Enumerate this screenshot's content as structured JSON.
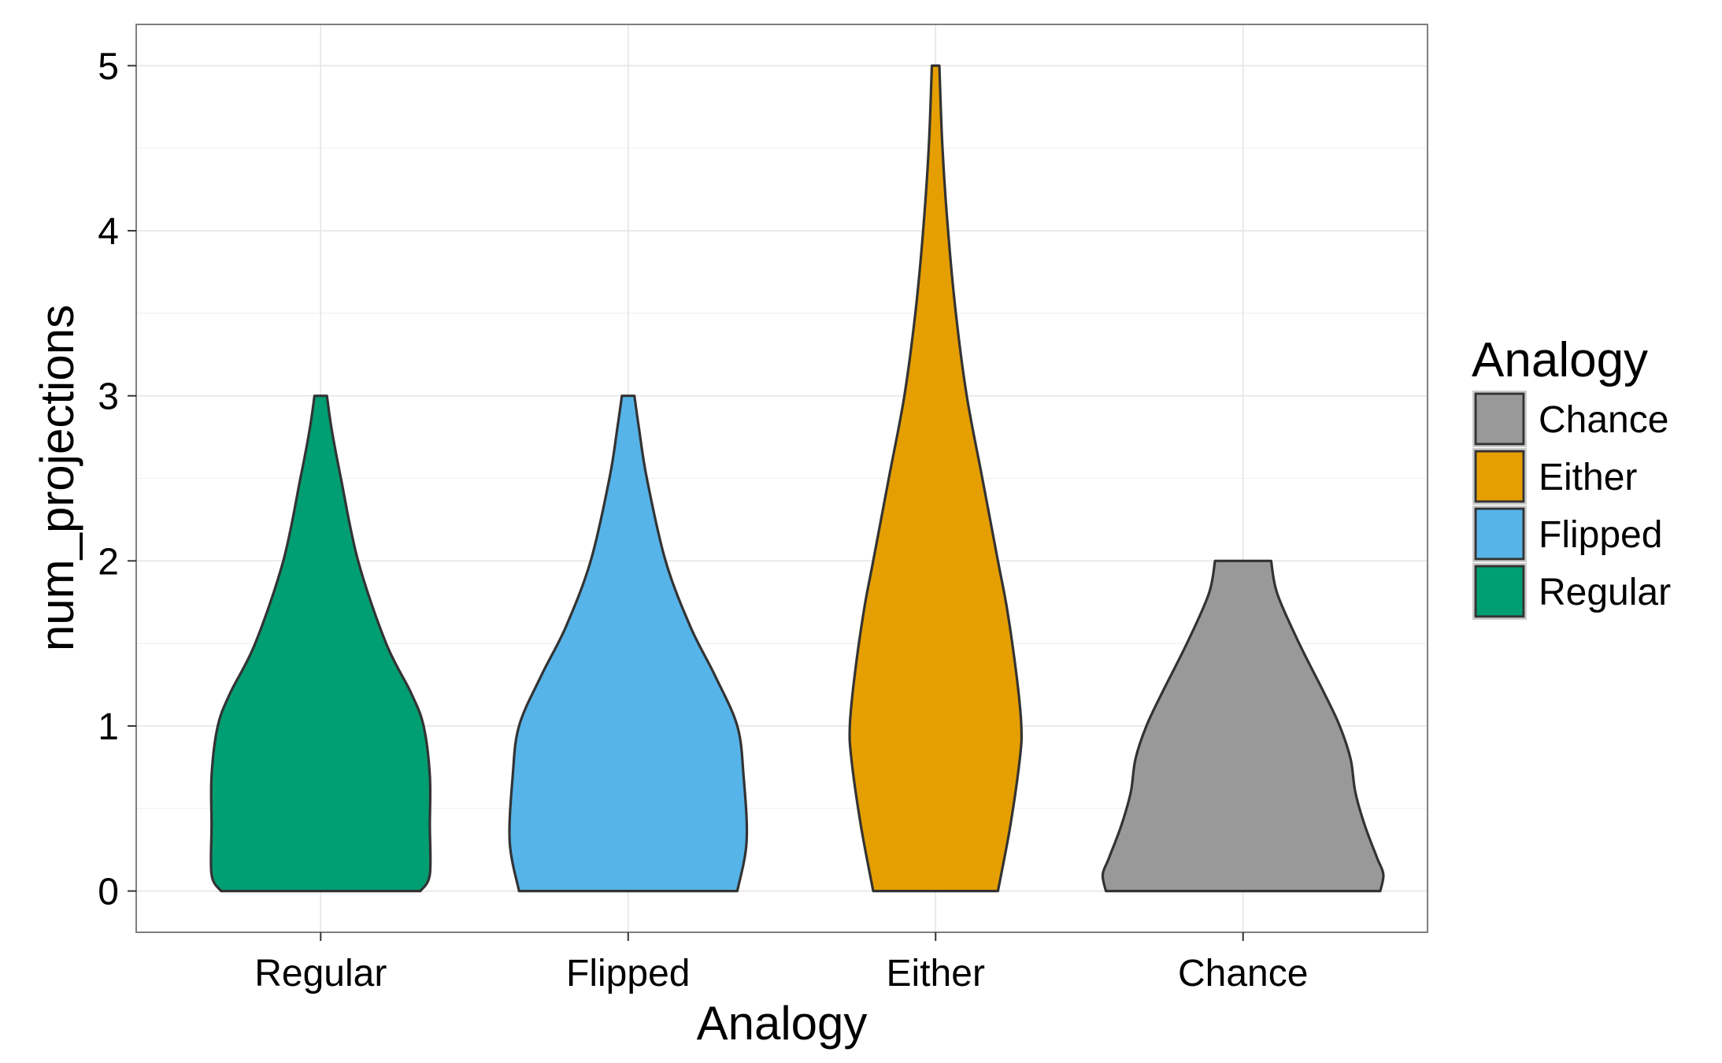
{
  "chart_data": {
    "type": "violin",
    "xlabel": "Analogy",
    "ylabel": "num_projections",
    "categories": [
      "Regular",
      "Flipped",
      "Either",
      "Chance"
    ],
    "ylim": [
      -0.25,
      5.25
    ],
    "yticks": [
      "0",
      "1",
      "2",
      "3",
      "4",
      "5"
    ],
    "grid": true,
    "legend": {
      "title": "Analogy",
      "position": "right",
      "entries": [
        {
          "label": "Chance",
          "color": "#999999"
        },
        {
          "label": "Either",
          "color": "#E69F00"
        },
        {
          "label": "Flipped",
          "color": "#56B4E9"
        },
        {
          "label": "Regular",
          "color": "#009E73"
        }
      ]
    },
    "series": [
      {
        "category": "Regular",
        "color": "#009E73",
        "min": 0,
        "max": 3,
        "density": [
          [
            0,
            0.32
          ],
          [
            0.1,
            0.35
          ],
          [
            0.4,
            0.35
          ],
          [
            0.7,
            0.35
          ],
          [
            1.0,
            0.33
          ],
          [
            1.2,
            0.29
          ],
          [
            1.5,
            0.21
          ],
          [
            2.0,
            0.12
          ],
          [
            2.5,
            0.065
          ],
          [
            2.8,
            0.035
          ],
          [
            3.0,
            0.02
          ]
        ]
      },
      {
        "category": "Flipped",
        "color": "#56B4E9",
        "min": 0,
        "max": 3,
        "density": [
          [
            0,
            0.35
          ],
          [
            0.3,
            0.38
          ],
          [
            0.7,
            0.37
          ],
          [
            1.0,
            0.35
          ],
          [
            1.3,
            0.28
          ],
          [
            1.6,
            0.2
          ],
          [
            2.0,
            0.12
          ],
          [
            2.5,
            0.06
          ],
          [
            2.8,
            0.035
          ],
          [
            3.0,
            0.02
          ]
        ]
      },
      {
        "category": "Either",
        "color": "#E69F00",
        "min": 0,
        "max": 5,
        "density": [
          [
            0,
            0.2
          ],
          [
            0.4,
            0.24
          ],
          [
            0.8,
            0.27
          ],
          [
            1.0,
            0.275
          ],
          [
            1.3,
            0.26
          ],
          [
            1.7,
            0.23
          ],
          [
            2.0,
            0.2
          ],
          [
            2.5,
            0.15
          ],
          [
            3.0,
            0.1
          ],
          [
            3.5,
            0.065
          ],
          [
            4.0,
            0.04
          ],
          [
            4.5,
            0.022
          ],
          [
            5.0,
            0.012
          ]
        ]
      },
      {
        "category": "Chance",
        "color": "#999999",
        "min": 0,
        "max": 2,
        "density": [
          [
            0,
            0.44
          ],
          [
            0.1,
            0.45
          ],
          [
            0.2,
            0.43
          ],
          [
            0.4,
            0.39
          ],
          [
            0.6,
            0.36
          ],
          [
            0.8,
            0.345
          ],
          [
            1.0,
            0.31
          ],
          [
            1.2,
            0.26
          ],
          [
            1.5,
            0.18
          ],
          [
            1.8,
            0.11
          ],
          [
            2.0,
            0.09
          ]
        ]
      }
    ]
  }
}
